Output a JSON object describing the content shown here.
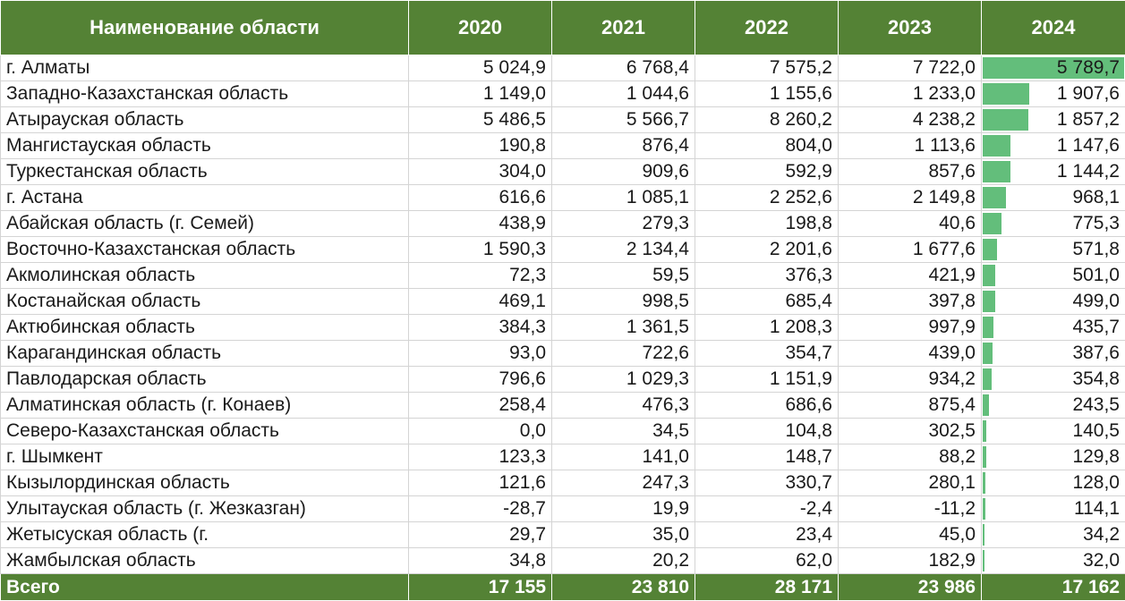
{
  "table": {
    "headers": [
      "Наименование области",
      "2020",
      "2021",
      "2022",
      "2023",
      "2024"
    ],
    "bar_color": "#63be7b",
    "header_color": "#548235",
    "bar_max_2024": 5789.7,
    "rows": [
      {
        "name": "г. Алматы",
        "v2020": "5 024,9",
        "v2021": "6 768,4",
        "v2022": "7 575,2",
        "v2023": "7 722,0",
        "v2024": "5 789,7",
        "v2024_num": 5789.7
      },
      {
        "name": "Западно-Казахстанская область",
        "v2020": "1 149,0",
        "v2021": "1 044,6",
        "v2022": "1 155,6",
        "v2023": "1 233,0",
        "v2024": "1 907,6",
        "v2024_num": 1907.6
      },
      {
        "name": "Атырауская область",
        "v2020": "5 486,5",
        "v2021": "5 566,7",
        "v2022": "8 260,2",
        "v2023": "4 238,2",
        "v2024": "1 857,2",
        "v2024_num": 1857.2
      },
      {
        "name": "Мангистауская область",
        "v2020": "190,8",
        "v2021": "876,4",
        "v2022": "804,0",
        "v2023": "1 113,6",
        "v2024": "1 147,6",
        "v2024_num": 1147.6
      },
      {
        "name": "Туркестанская область",
        "v2020": "304,0",
        "v2021": "909,6",
        "v2022": "592,9",
        "v2023": "857,6",
        "v2024": "1 144,2",
        "v2024_num": 1144.2
      },
      {
        "name": "г. Астана",
        "v2020": "616,6",
        "v2021": "1 085,1",
        "v2022": "2 252,6",
        "v2023": "2 149,8",
        "v2024": "968,1",
        "v2024_num": 968.1
      },
      {
        "name": "Абайская область (г. Семей)",
        "v2020": "438,9",
        "v2021": "279,3",
        "v2022": "198,8",
        "v2023": "40,6",
        "v2024": "775,3",
        "v2024_num": 775.3
      },
      {
        "name": "Восточно-Казахстанская область",
        "v2020": "1 590,3",
        "v2021": "2 134,4",
        "v2022": "2 201,6",
        "v2023": "1 677,6",
        "v2024": "571,8",
        "v2024_num": 571.8
      },
      {
        "name": "Акмолинская область",
        "v2020": "72,3",
        "v2021": "59,5",
        "v2022": "376,3",
        "v2023": "421,9",
        "v2024": "501,0",
        "v2024_num": 501.0
      },
      {
        "name": "Костанайская область",
        "v2020": "469,1",
        "v2021": "998,5",
        "v2022": "685,4",
        "v2023": "397,8",
        "v2024": "499,0",
        "v2024_num": 499.0
      },
      {
        "name": "Актюбинская область",
        "v2020": "384,3",
        "v2021": "1 361,5",
        "v2022": "1 208,3",
        "v2023": "997,9",
        "v2024": "435,7",
        "v2024_num": 435.7
      },
      {
        "name": "Карагандинская область",
        "v2020": "93,0",
        "v2021": "722,6",
        "v2022": "354,7",
        "v2023": "439,0",
        "v2024": "387,6",
        "v2024_num": 387.6
      },
      {
        "name": "Павлодарская область",
        "v2020": "796,6",
        "v2021": "1 029,3",
        "v2022": "1 151,9",
        "v2023": "934,2",
        "v2024": "354,8",
        "v2024_num": 354.8
      },
      {
        "name": "Алматинская область (г. Конаев)",
        "v2020": "258,4",
        "v2021": "476,3",
        "v2022": "686,6",
        "v2023": "875,4",
        "v2024": "243,5",
        "v2024_num": 243.5
      },
      {
        "name": "Северо-Казахстанская область",
        "v2020": "0,0",
        "v2021": "34,5",
        "v2022": "104,8",
        "v2023": "302,5",
        "v2024": "140,5",
        "v2024_num": 140.5
      },
      {
        "name": "г. Шымкент",
        "v2020": "123,3",
        "v2021": "141,0",
        "v2022": "148,7",
        "v2023": "88,2",
        "v2024": "129,8",
        "v2024_num": 129.8
      },
      {
        "name": "Кызылординская область",
        "v2020": "121,6",
        "v2021": "247,3",
        "v2022": "330,7",
        "v2023": "280,1",
        "v2024": "128,0",
        "v2024_num": 128.0
      },
      {
        "name": "Улытауская область (г. Жезказган)",
        "v2020": "-28,7",
        "v2021": "19,9",
        "v2022": "-2,4",
        "v2023": "-11,2",
        "v2024": "114,1",
        "v2024_num": 114.1
      },
      {
        "name": "Жетысуская область (г.",
        "v2020": "29,7",
        "v2021": "35,0",
        "v2022": "23,4",
        "v2023": "45,0",
        "v2024": "34,2",
        "v2024_num": 34.2
      },
      {
        "name": "Жамбылская область",
        "v2020": "34,8",
        "v2021": "20,2",
        "v2022": "62,0",
        "v2023": "182,9",
        "v2024": "32,0",
        "v2024_num": 32.0
      }
    ],
    "total": {
      "name": "Всего",
      "v2020": "17 155",
      "v2021": "23 810",
      "v2022": "28 171",
      "v2023": "23 986",
      "v2024": "17 162"
    }
  }
}
